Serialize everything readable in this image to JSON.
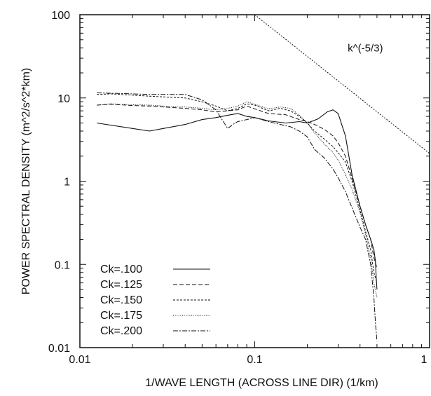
{
  "chart_data": {
    "type": "line",
    "title": "",
    "xlabel": "1/WAVE LENGTH (ACROSS LINE DIR) (1/km)",
    "ylabel": "POWER SPECTRAL DENSITY (m^2/s^2*km)",
    "xscale": "log",
    "yscale": "log",
    "xlim": [
      0.01,
      1
    ],
    "ylim": [
      0.01,
      100
    ],
    "x_ticks": [
      {
        "value": 0.01,
        "label": "0.01"
      },
      {
        "value": 0.1,
        "label": "0.1"
      },
      {
        "value": 1,
        "label": "1"
      }
    ],
    "y_ticks": [
      {
        "value": 0.01,
        "label": "0.01"
      },
      {
        "value": 0.1,
        "label": "0.1"
      },
      {
        "value": 1,
        "label": "1"
      },
      {
        "value": 10,
        "label": "10"
      },
      {
        "value": 100,
        "label": "100"
      }
    ],
    "grid": false,
    "legend_position": "bottom-left",
    "reference_line": {
      "label": "k^(-5/3)",
      "x": [
        0.1,
        1
      ],
      "y": [
        100,
        2.15
      ]
    },
    "series": [
      {
        "name": "Ck=.100",
        "x": [
          0.0125,
          0.02,
          0.025,
          0.03,
          0.04,
          0.05,
          0.06,
          0.07,
          0.08,
          0.09,
          0.1,
          0.12,
          0.15,
          0.18,
          0.2,
          0.23,
          0.26,
          0.28,
          0.3,
          0.33,
          0.36,
          0.4,
          0.43,
          0.46,
          0.48,
          0.49,
          0.495,
          0.5
        ],
        "y": [
          5,
          4.3,
          4,
          4.3,
          4.8,
          5.5,
          5.8,
          6.2,
          6.5,
          6,
          5.8,
          5.3,
          5,
          5.2,
          5,
          5.6,
          6.8,
          7.2,
          6.5,
          3.5,
          1.2,
          0.5,
          0.3,
          0.2,
          0.15,
          0.11,
          0.07,
          0.05
        ]
      },
      {
        "name": "Ck=.125",
        "x": [
          0.0125,
          0.015,
          0.02,
          0.025,
          0.03,
          0.04,
          0.05,
          0.06,
          0.07,
          0.08,
          0.09,
          0.1,
          0.12,
          0.15,
          0.18,
          0.2,
          0.22,
          0.25,
          0.28,
          0.3,
          0.33,
          0.36,
          0.4,
          0.43,
          0.46,
          0.48,
          0.5
        ],
        "y": [
          8.2,
          8.4,
          8.1,
          8,
          7.8,
          7.5,
          7.2,
          6.8,
          7,
          7.2,
          8,
          7.4,
          6.5,
          6.3,
          5.5,
          5.2,
          4.8,
          4.2,
          3.5,
          2.9,
          2,
          1.1,
          0.5,
          0.3,
          0.2,
          0.12,
          0.09
        ]
      },
      {
        "name": "Ck=.150",
        "x": [
          0.0125,
          0.015,
          0.02,
          0.025,
          0.03,
          0.04,
          0.05,
          0.06,
          0.07,
          0.08,
          0.09,
          0.1,
          0.12,
          0.14,
          0.16,
          0.18,
          0.2,
          0.22,
          0.25,
          0.28,
          0.3,
          0.33,
          0.36,
          0.4,
          0.43,
          0.46,
          0.48,
          0.5
        ],
        "y": [
          11,
          11.2,
          10.8,
          10.5,
          10.3,
          10,
          9,
          8,
          7,
          7.5,
          8.5,
          8.2,
          7,
          7.5,
          7,
          6,
          5,
          4,
          3.2,
          2.6,
          2.2,
          1.7,
          1,
          0.45,
          0.25,
          0.15,
          0.08,
          0.06
        ]
      },
      {
        "name": "Ck=.175",
        "x": [
          0.0125,
          0.015,
          0.02,
          0.025,
          0.03,
          0.04,
          0.05,
          0.06,
          0.07,
          0.08,
          0.09,
          0.1,
          0.12,
          0.14,
          0.16,
          0.18,
          0.2,
          0.22,
          0.25,
          0.28,
          0.3,
          0.33,
          0.36,
          0.4,
          0.43,
          0.46,
          0.48,
          0.5
        ],
        "y": [
          8.2,
          8.5,
          8.3,
          8.2,
          8,
          7.8,
          7.5,
          7.2,
          7.5,
          8,
          9,
          8.4,
          7.4,
          7.8,
          7.5,
          6.2,
          5,
          3.8,
          2.8,
          2.2,
          1.8,
          1.2,
          0.8,
          0.42,
          0.23,
          0.12,
          0.06,
          0.04
        ]
      },
      {
        "name": "Ck=.200",
        "x": [
          0.0125,
          0.015,
          0.02,
          0.025,
          0.03,
          0.04,
          0.05,
          0.06,
          0.065,
          0.07,
          0.075,
          0.08,
          0.09,
          0.1,
          0.12,
          0.14,
          0.16,
          0.18,
          0.2,
          0.22,
          0.25,
          0.28,
          0.3,
          0.33,
          0.36,
          0.4,
          0.43,
          0.46,
          0.48,
          0.49,
          0.5
        ],
        "y": [
          11.5,
          11.4,
          11.2,
          11,
          11,
          11,
          9.5,
          7.2,
          5.5,
          4.3,
          4.8,
          5.2,
          5.5,
          5.8,
          5.2,
          4.8,
          4.5,
          4,
          3.4,
          2.4,
          1.9,
          1.4,
          1.1,
          0.75,
          0.48,
          0.28,
          0.2,
          0.1,
          0.04,
          0.02,
          0.012
        ]
      }
    ]
  }
}
